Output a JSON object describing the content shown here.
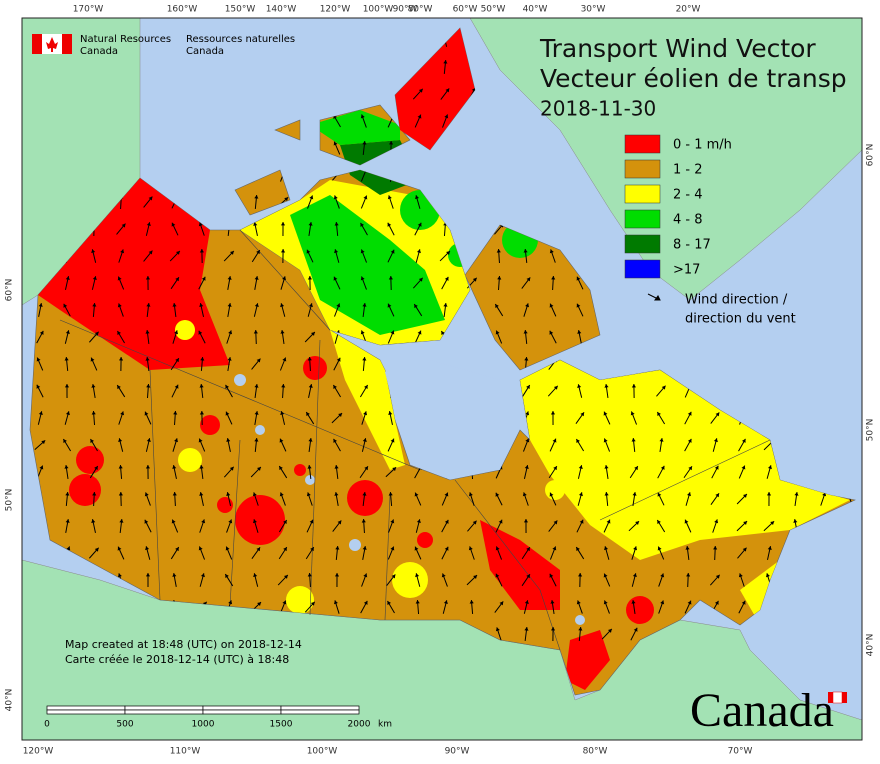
{
  "agency": {
    "en_line1": "Natural Resources",
    "en_line2": "Canada",
    "fr_line1": "Ressources naturelles",
    "fr_line2": "Canada"
  },
  "title": {
    "line1": "Transport Wind Vector",
    "line2": "Vecteur éolien de transp",
    "date": "2018-11-30"
  },
  "legend": {
    "items": [
      {
        "label": "0 - 1 m/h",
        "color": "#ff0000"
      },
      {
        "label": "1 - 2",
        "color": "#d4920c"
      },
      {
        "label": "2 - 4",
        "color": "#ffff00"
      },
      {
        "label": "4 - 8",
        "color": "#00dd00"
      },
      {
        "label": "8 - 17",
        "color": "#007a00"
      },
      {
        "label": ">17",
        "color": "#0000ff"
      }
    ],
    "arrow_label_line1": "Wind direction /",
    "arrow_label_line2": "direction du vent"
  },
  "graticule": {
    "top": [
      "170°W",
      "160°W",
      "150°W",
      "140°W",
      "120°W",
      "100°W",
      "90°W",
      "80°W",
      "60°W",
      "50°W",
      "40°W",
      "30°W",
      "20°W"
    ],
    "bottom": [
      "120°W",
      "110°W",
      "100°W",
      "90°W",
      "80°W",
      "70°W"
    ],
    "left": [
      "60°N",
      "50°N",
      "40°N"
    ],
    "right": [
      "60°N",
      "50°N",
      "40°N"
    ]
  },
  "credits": {
    "line1": "Map created at 18:48 (UTC) on 2018-12-14",
    "line2": "Carte créée le 2018-12-14 (UTC) à 18:48"
  },
  "scale_bar": {
    "labels": [
      "0",
      "500",
      "1000",
      "1500",
      "2000"
    ],
    "unit": "km"
  },
  "wordmark": "Canada"
}
